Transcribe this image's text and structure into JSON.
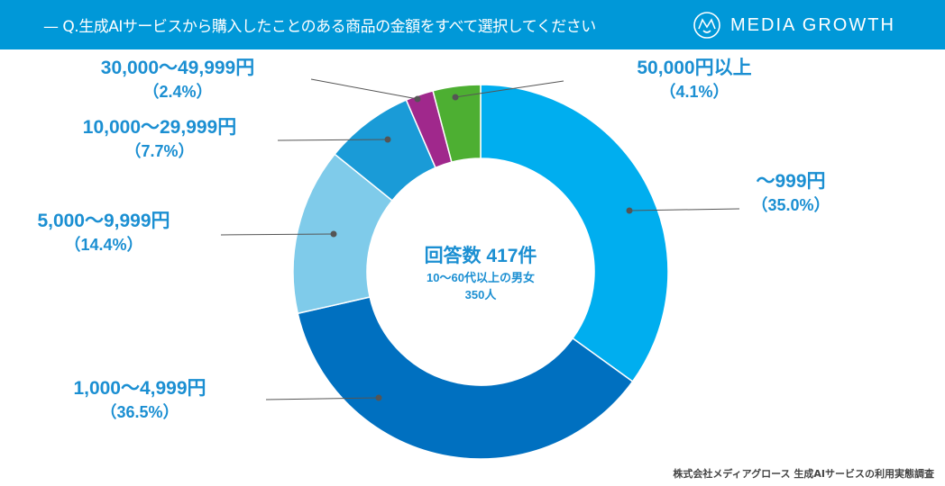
{
  "header": {
    "title": "Q.生成AIサービスから購入したことのある商品の金額をすべて選択してください",
    "logo_text": "MEDIA GROWTH",
    "background": "#0098D8"
  },
  "chart_data": {
    "type": "pie",
    "donut": true,
    "categories": [
      "〜999円",
      "1,000〜4,999円",
      "5,000〜9,999円",
      "10,000〜29,999円",
      "30,000〜49,999円",
      "50,000円以上"
    ],
    "values": [
      35.0,
      36.5,
      14.4,
      7.7,
      2.4,
      4.1
    ],
    "percent_labels": [
      "（35.0%）",
      "（36.5%）",
      "（14.4%）",
      "（7.7%）",
      "（2.4%）",
      "（4.1%）"
    ],
    "colors": [
      "#00AEEF",
      "#0070C0",
      "#7FCBEA",
      "#1A9BD7",
      "#A0288C",
      "#4DAF32"
    ],
    "center_text": {
      "line1": "回答数 417件",
      "line2": "10〜60代以上の男女",
      "line3": "350人"
    }
  },
  "footer": {
    "source": "株式会社メディアグロース 生成AIサービスの利用実態調査"
  }
}
